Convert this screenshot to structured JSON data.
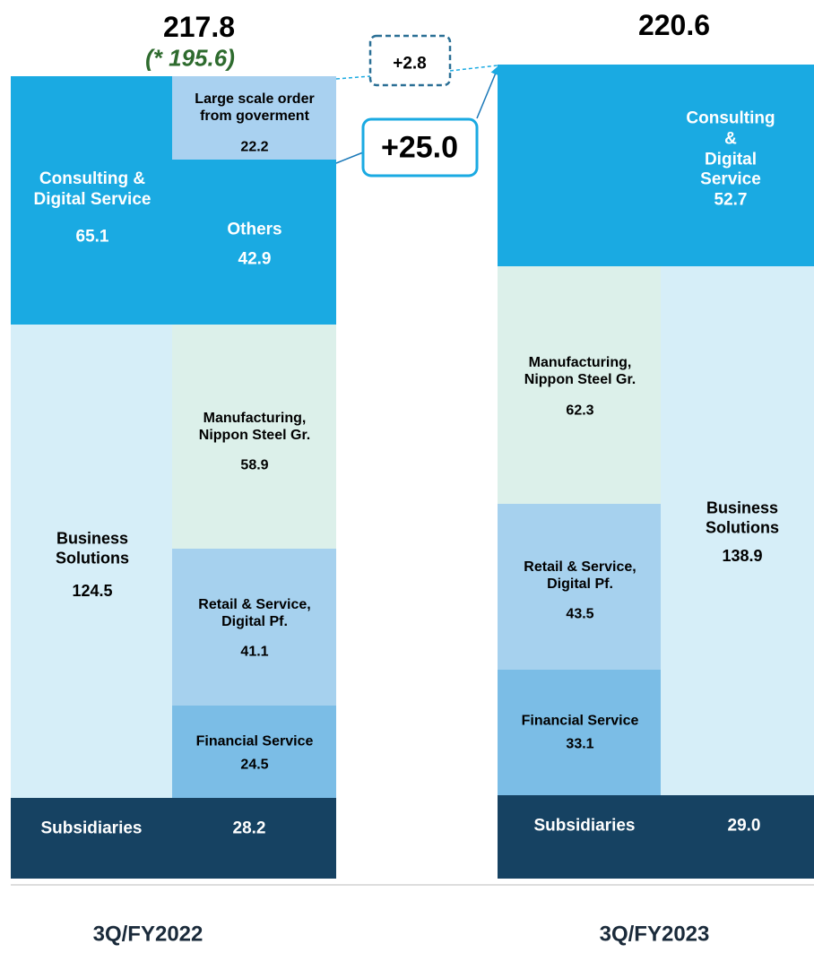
{
  "left": {
    "total": 217.8,
    "note": "(* 195.6)",
    "period": "3Q/FY2022",
    "segments": [
      {
        "label": "Consulting &\nDigital Service",
        "value": 65.1
      },
      {
        "label": "Large scale order\nfrom goverment",
        "value": 22.2
      },
      {
        "label": "Others",
        "value": 42.9
      },
      {
        "label": "Business\nSolutions",
        "value": 124.5
      },
      {
        "label": "Manufacturing,\nNippon Steel Gr.",
        "value": 58.9
      },
      {
        "label": "Retail & Service,\nDigital Pf.",
        "value": 41.1
      },
      {
        "label": "Financial Service",
        "value": 24.5
      },
      {
        "label": "Subsidiaries",
        "value": 28.2
      }
    ]
  },
  "right": {
    "total": 220.6,
    "period": "3Q/FY2023",
    "segments": [
      {
        "label": "Consulting &\nDigital Service",
        "value": 52.7
      },
      {
        "label": "Manufacturing,\nNippon Steel Gr.",
        "value": 62.3
      },
      {
        "label": "Retail & Service,\nDigital Pf.",
        "value": 43.5
      },
      {
        "label": "Financial Service",
        "value": 33.1
      },
      {
        "label": "Business\nSolutions",
        "value": 138.9
      },
      {
        "label": "Subsidiaries",
        "value": 29.0
      }
    ]
  },
  "callouts": [
    "+2.8",
    "+25.0"
  ]
}
